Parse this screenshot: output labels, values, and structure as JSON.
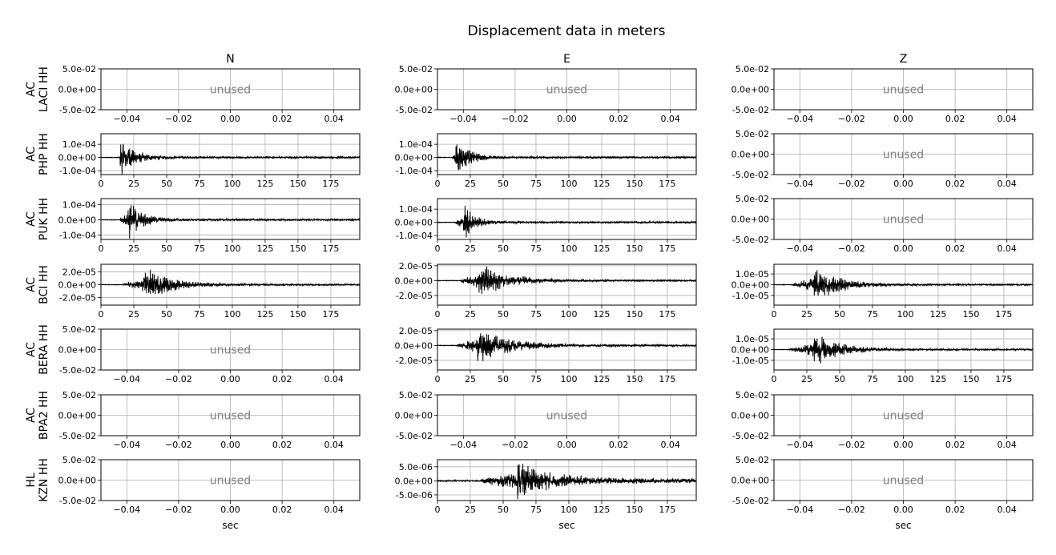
{
  "figure": {
    "title": "Displacement data in meters",
    "xlabel": "sec",
    "unused_label": "unused"
  },
  "chart_data": {
    "type": "line",
    "title": "Displacement data in meters",
    "xlabel": "sec",
    "components": [
      "N",
      "E",
      "Z"
    ],
    "stations": [
      {
        "network": "AC",
        "name": "LACI HH"
      },
      {
        "network": "AC",
        "name": "PHP HH"
      },
      {
        "network": "AC",
        "name": "PUK HH"
      },
      {
        "network": "AC",
        "name": "BCI HH"
      },
      {
        "network": "AC",
        "name": "BERA HH"
      },
      {
        "network": "AC",
        "name": "BPA2 HH"
      },
      {
        "network": "HL",
        "name": "KZN HH"
      }
    ],
    "panels": [
      [
        {
          "used": false,
          "xlim": [
            -0.05,
            0.05
          ],
          "ylim": [
            -0.05,
            0.05
          ],
          "xticks": [
            "−0.04",
            "−0.02",
            "0.00",
            "0.02",
            "0.04"
          ],
          "yticks": [
            "5.0e-02",
            "0.0e+00",
            "-5.0e-02"
          ]
        },
        {
          "used": false,
          "xlim": [
            -0.05,
            0.05
          ],
          "ylim": [
            -0.05,
            0.05
          ],
          "xticks": [
            "−0.04",
            "−0.02",
            "0.00",
            "0.02",
            "0.04"
          ],
          "yticks": [
            "5.0e-02",
            "0.0e+00",
            "-5.0e-02"
          ]
        },
        {
          "used": false,
          "xlim": [
            -0.05,
            0.05
          ],
          "ylim": [
            -0.05,
            0.05
          ],
          "xticks": [
            "−0.04",
            "−0.02",
            "0.00",
            "0.02",
            "0.04"
          ],
          "yticks": [
            "5.0e-02",
            "0.0e+00",
            "-5.0e-02"
          ]
        }
      ],
      [
        {
          "used": true,
          "xlim": [
            0,
            197
          ],
          "ylim": [
            -0.00013,
            0.00018
          ],
          "xticks": [
            "0",
            "25",
            "50",
            "75",
            "100",
            "125",
            "150",
            "175"
          ],
          "yticks": [
            "1.0e-04",
            "0.0e+00",
            "-1.0e-04"
          ],
          "trace": {
            "onset": 14,
            "peak": 14.5,
            "amp": 0.00017,
            "decay": 10,
            "coda": 8e-06
          }
        },
        {
          "used": true,
          "xlim": [
            0,
            197
          ],
          "ylim": [
            -0.00013,
            0.00018
          ],
          "xticks": [
            "0",
            "25",
            "50",
            "75",
            "100",
            "125",
            "150",
            "175"
          ],
          "yticks": [
            "1.0e-04",
            "0.0e+00",
            "-1.0e-04"
          ],
          "trace": {
            "onset": 11,
            "peak": 14,
            "amp": 0.00016,
            "decay": 9,
            "coda": 8e-06
          }
        },
        {
          "used": false,
          "xlim": [
            -0.05,
            0.05
          ],
          "ylim": [
            -0.05,
            0.05
          ],
          "xticks": [
            "−0.04",
            "−0.02",
            "0.00",
            "0.02",
            "0.04"
          ],
          "yticks": [
            "5.0e-02",
            "0.0e+00",
            "-5.0e-02"
          ]
        }
      ],
      [
        {
          "used": true,
          "xlim": [
            0,
            197
          ],
          "ylim": [
            -0.00013,
            0.00014
          ],
          "xticks": [
            "0",
            "25",
            "50",
            "75",
            "100",
            "125",
            "150",
            "175"
          ],
          "yticks": [
            "1.0e-04",
            "0.0e+00",
            "-1.0e-04"
          ],
          "trace": {
            "onset": 14,
            "peak": 20.5,
            "amp": 0.00014,
            "decay": 10,
            "coda": 7e-06
          }
        },
        {
          "used": true,
          "xlim": [
            0,
            197
          ],
          "ylim": [
            -0.00013,
            0.00018
          ],
          "xticks": [
            "0",
            "25",
            "50",
            "75",
            "100",
            "125",
            "150",
            "175"
          ],
          "yticks": [
            "1.0e-04",
            "0.0e+00",
            "-1.0e-04"
          ],
          "trace": {
            "onset": 13,
            "peak": 20,
            "amp": 0.00016,
            "decay": 8,
            "coda": 7e-06
          }
        },
        {
          "used": false,
          "xlim": [
            -0.05,
            0.05
          ],
          "ylim": [
            -0.05,
            0.05
          ],
          "xticks": [
            "−0.04",
            "−0.02",
            "0.00",
            "0.02",
            "0.04"
          ],
          "yticks": [
            "5.0e-02",
            "0.0e+00",
            "-5.0e-02"
          ]
        }
      ],
      [
        {
          "used": true,
          "xlim": [
            0,
            197
          ],
          "ylim": [
            -3.2e-05,
            3.2e-05
          ],
          "xticks": [
            "0",
            "25",
            "50",
            "75",
            "100",
            "125",
            "150",
            "175"
          ],
          "yticks": [
            "2.0e-05",
            "0.0e+00",
            "-2.0e-05"
          ],
          "trace": {
            "onset": 17,
            "peak": 33,
            "amp": 2.9e-05,
            "decay": 18,
            "coda": 1.5e-06
          }
        },
        {
          "used": true,
          "xlim": [
            0,
            197
          ],
          "ylim": [
            -3.3e-05,
            2.2e-05
          ],
          "xticks": [
            "0",
            "25",
            "50",
            "75",
            "100",
            "125",
            "150",
            "175"
          ],
          "yticks": [
            "2.0e-05",
            "0.0e+00",
            "-2.0e-05"
          ],
          "trace": {
            "onset": 17,
            "peak": 31,
            "amp": 2.6e-05,
            "decay": 20,
            "coda": 1.2e-06
          }
        },
        {
          "used": true,
          "xlim": [
            0,
            197
          ],
          "ylim": [
            -1.9e-05,
            1.9e-05
          ],
          "xticks": [
            "0",
            "25",
            "50",
            "75",
            "100",
            "125",
            "150",
            "175"
          ],
          "yticks": [
            "1.0e-05",
            "0.0e+00",
            "-1.0e-05"
          ],
          "trace": {
            "onset": 14,
            "peak": 30,
            "amp": 1.8e-05,
            "decay": 18,
            "coda": 8e-07
          }
        }
      ],
      [
        {
          "used": false,
          "xlim": [
            -0.05,
            0.05
          ],
          "ylim": [
            -0.05,
            0.05
          ],
          "xticks": [
            "−0.04",
            "−0.02",
            "0.00",
            "0.02",
            "0.04"
          ],
          "yticks": [
            "5.0e-02",
            "0.0e+00",
            "-5.0e-02"
          ]
        },
        {
          "used": true,
          "xlim": [
            0,
            197
          ],
          "ylim": [
            -3.3e-05,
            2.2e-05
          ],
          "xticks": [
            "0",
            "25",
            "50",
            "75",
            "100",
            "125",
            "150",
            "175"
          ],
          "yticks": [
            "2.0e-05",
            "0.0e+00",
            "-2.0e-05"
          ],
          "trace": {
            "onset": 14,
            "peak": 30,
            "amp": 2.5e-05,
            "decay": 22,
            "coda": 1.5e-06
          }
        },
        {
          "used": true,
          "xlim": [
            0,
            197
          ],
          "ylim": [
            -1.9e-05,
            1.9e-05
          ],
          "xticks": [
            "0",
            "25",
            "50",
            "75",
            "100",
            "125",
            "150",
            "175"
          ],
          "yticks": [
            "1.0e-05",
            "0.0e+00",
            "-1.0e-05"
          ],
          "trace": {
            "onset": 12,
            "peak": 30,
            "amp": 1.7e-05,
            "decay": 18,
            "coda": 8e-07
          }
        }
      ],
      [
        {
          "used": false,
          "xlim": [
            -0.05,
            0.05
          ],
          "ylim": [
            -0.05,
            0.05
          ],
          "xticks": [
            "−0.04",
            "−0.02",
            "0.00",
            "0.02",
            "0.04"
          ],
          "yticks": [
            "5.0e-02",
            "0.0e+00",
            "-5.0e-02"
          ]
        },
        {
          "used": false,
          "xlim": [
            -0.05,
            0.05
          ],
          "ylim": [
            -0.05,
            0.05
          ],
          "xticks": [
            "−0.04",
            "−0.02",
            "0.00",
            "0.02",
            "0.04"
          ],
          "yticks": [
            "5.0e-02",
            "0.0e+00",
            "-5.0e-02"
          ]
        },
        {
          "used": false,
          "xlim": [
            -0.05,
            0.05
          ],
          "ylim": [
            -0.05,
            0.05
          ],
          "xticks": [
            "−0.04",
            "−0.02",
            "0.00",
            "0.02",
            "0.04"
          ],
          "yticks": [
            "5.0e-02",
            "0.0e+00",
            "-5.0e-02"
          ]
        }
      ],
      [
        {
          "used": false,
          "xlim": [
            -0.05,
            0.05
          ],
          "ylim": [
            -0.05,
            0.05
          ],
          "xticks": [
            "−0.04",
            "−0.02",
            "0.00",
            "0.02",
            "0.04"
          ],
          "yticks": [
            "5.0e-02",
            "0.0e+00",
            "-5.0e-02"
          ]
        },
        {
          "used": true,
          "xlim": [
            0,
            197
          ],
          "ylim": [
            -7e-06,
            7.5e-06
          ],
          "xticks": [
            "0",
            "25",
            "50",
            "75",
            "100",
            "125",
            "150",
            "175"
          ],
          "yticks": [
            "5.0e-06",
            "0.0e+00",
            "-5.0e-06"
          ],
          "trace": {
            "onset": 33,
            "peak": 61,
            "amp": 6.5e-06,
            "decay": 25,
            "coda": 8e-07
          }
        },
        {
          "used": false,
          "xlim": [
            -0.05,
            0.05
          ],
          "ylim": [
            -0.05,
            0.05
          ],
          "xticks": [
            "−0.04",
            "−0.02",
            "0.00",
            "0.02",
            "0.04"
          ],
          "yticks": [
            "5.0e-02",
            "0.0e+00",
            "-5.0e-02"
          ]
        }
      ]
    ],
    "grid": true
  }
}
